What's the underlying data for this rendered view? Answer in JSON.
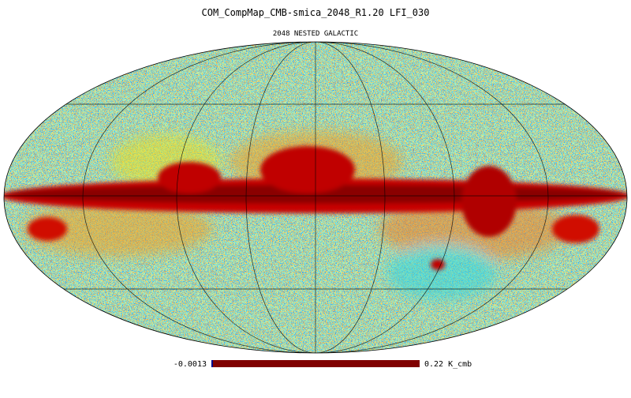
{
  "header": {
    "title": "COM_CompMap_CMB-smica_2048_R1.20   LFI_030",
    "subtitle": "2048 NESTED GALACTIC"
  },
  "colorbar": {
    "min_label": "-0.0013",
    "max_label": "0.22 K_cmb"
  }
}
